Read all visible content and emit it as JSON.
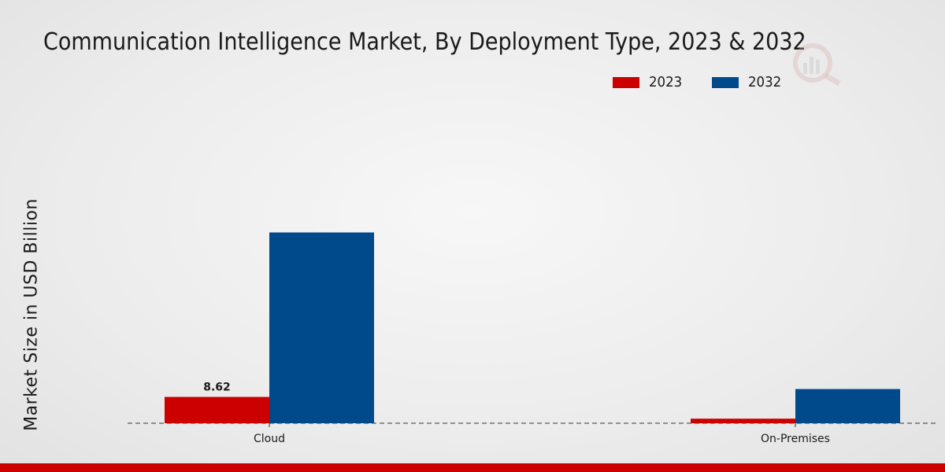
{
  "chart_data": {
    "type": "bar",
    "title": "Communication Intelligence Market, By Deployment Type, 2023 & 2032",
    "xlabel": "",
    "ylabel": "Market Size in USD Billion",
    "categories": [
      "Cloud",
      "On-Premises"
    ],
    "series": [
      {
        "name": "2023",
        "color": "#cc0000",
        "values": [
          8.62,
          1.5
        ]
      },
      {
        "name": "2032",
        "color": "#004a8c",
        "values": [
          62.5,
          11.2
        ]
      }
    ],
    "data_labels": [
      {
        "series": "2023",
        "category": "Cloud",
        "text": "8.62"
      }
    ],
    "ylim": [
      0,
      100
    ],
    "grid": false,
    "legend_position": "top-right"
  }
}
